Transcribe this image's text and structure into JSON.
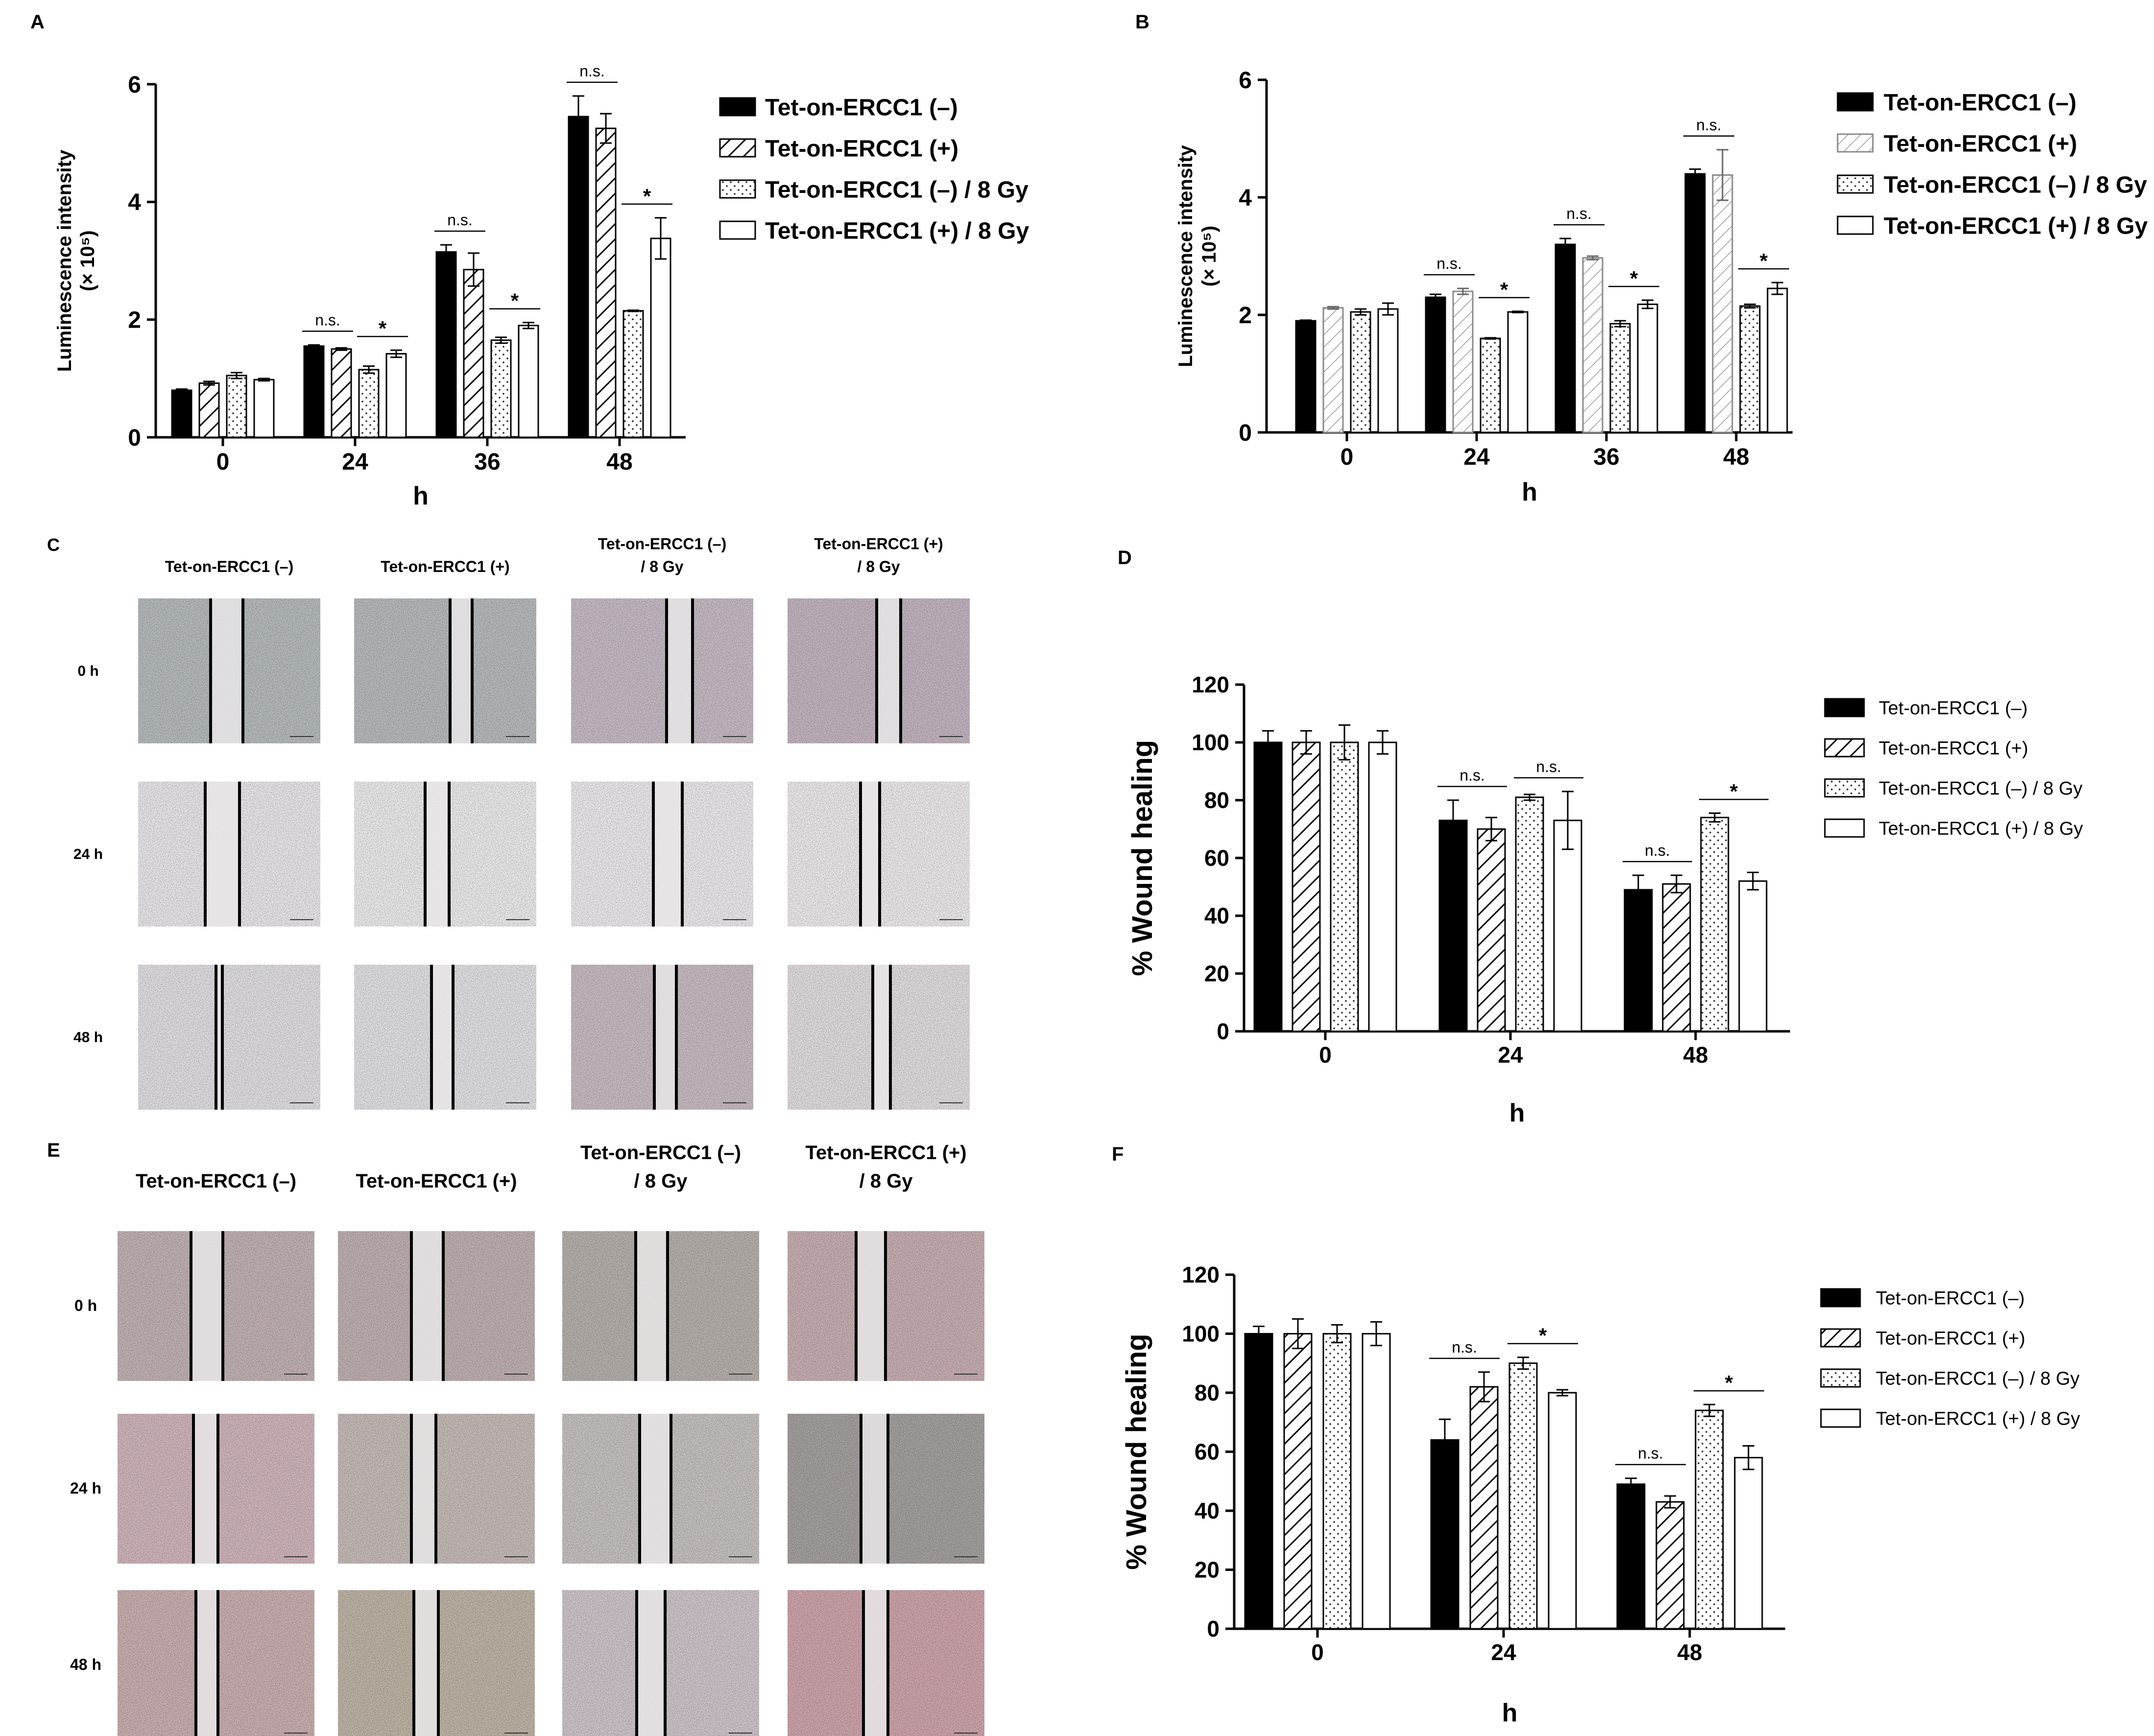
{
  "panels": {
    "A": "A",
    "B": "B",
    "C": "C",
    "D": "D",
    "E": "E",
    "F": "F"
  },
  "colors": {
    "black": "#000000",
    "white": "#ffffff",
    "bgA": "#b9c0c4",
    "bgA2": "#c4b6bf",
    "bgB": "#ece9ec",
    "bgE": "#c4aab0",
    "bgE2": "#b8b0ad",
    "stripe": "#e8e6e8"
  },
  "chart_data": [
    {
      "id": "A",
      "type": "bar",
      "title": "",
      "xlabel": "h",
      "ylabel": "Luminescence intensity",
      "ylabel2": "(× 10⁵)",
      "ylim": [
        0,
        6
      ],
      "yticks": [
        "0",
        "2",
        "4",
        "6"
      ],
      "categories": [
        "0",
        "24",
        "36",
        "48"
      ],
      "series": [
        {
          "name": "Tet-on-ERCC1 (–)",
          "style": "solid",
          "values": [
            0.8,
            1.55,
            3.15,
            5.45
          ],
          "errors": [
            0.02,
            0.02,
            0.12,
            0.35
          ]
        },
        {
          "name": "Tet-on-ERCC1 (+)",
          "style": "hatch",
          "values": [
            0.92,
            1.5,
            2.85,
            5.25
          ],
          "errors": [
            0.03,
            0.02,
            0.28,
            0.25
          ]
        },
        {
          "name": "Tet-on-ERCC1 (–) / 8 Gy",
          "style": "dots",
          "values": [
            1.05,
            1.15,
            1.65,
            2.15
          ],
          "errors": [
            0.05,
            0.06,
            0.05,
            0.01
          ]
        },
        {
          "name": "Tet-on-ERCC1 (+) / 8 Gy",
          "style": "open",
          "values": [
            0.98,
            1.42,
            1.9,
            3.38
          ],
          "errors": [
            0.02,
            0.06,
            0.05,
            0.35
          ]
        }
      ],
      "annotations": [
        {
          "group": 1,
          "pair": [
            0,
            1
          ],
          "text": "n.s."
        },
        {
          "group": 1,
          "pair": [
            2,
            3
          ],
          "text": "*"
        },
        {
          "group": 2,
          "pair": [
            0,
            1
          ],
          "text": "n.s."
        },
        {
          "group": 2,
          "pair": [
            2,
            3
          ],
          "text": "*"
        },
        {
          "group": 3,
          "pair": [
            0,
            1
          ],
          "text": "n.s."
        },
        {
          "group": 3,
          "pair": [
            2,
            3
          ],
          "text": "*"
        }
      ]
    },
    {
      "id": "B",
      "type": "bar",
      "title": "",
      "xlabel": "h",
      "ylabel": "Luminescence intensity",
      "ylabel2": "(× 10⁵)",
      "ylim": [
        0,
        6
      ],
      "yticks": [
        "0",
        "2",
        "4",
        "6"
      ],
      "categories": [
        "0",
        "24",
        "36",
        "48"
      ],
      "series": [
        {
          "name": "Tet-on-ERCC1 (–)",
          "style": "solid",
          "values": [
            1.9,
            2.3,
            3.2,
            4.4
          ],
          "errors": [
            0.01,
            0.05,
            0.1,
            0.08
          ]
        },
        {
          "name": "Tet-on-ERCC1 (+)",
          "style": "hatchlight",
          "values": [
            2.12,
            2.4,
            2.97,
            4.38
          ],
          "errors": [
            0.02,
            0.05,
            0.03,
            0.43
          ]
        },
        {
          "name": "Tet-on-ERCC1 (–) / 8 Gy",
          "style": "dots",
          "values": [
            2.05,
            1.6,
            1.85,
            2.15
          ],
          "errors": [
            0.05,
            0.01,
            0.05,
            0.03
          ]
        },
        {
          "name": "Tet-on-ERCC1 (+) / 8 Gy",
          "style": "open",
          "values": [
            2.1,
            2.05,
            2.18,
            2.45
          ],
          "errors": [
            0.1,
            0.01,
            0.07,
            0.1
          ]
        }
      ],
      "annotations": [
        {
          "group": 1,
          "pair": [
            0,
            1
          ],
          "text": "n.s."
        },
        {
          "group": 1,
          "pair": [
            2,
            3
          ],
          "text": "*"
        },
        {
          "group": 2,
          "pair": [
            0,
            1
          ],
          "text": "n.s."
        },
        {
          "group": 2,
          "pair": [
            2,
            3
          ],
          "text": "*"
        },
        {
          "group": 3,
          "pair": [
            0,
            1
          ],
          "text": "n.s."
        },
        {
          "group": 3,
          "pair": [
            2,
            3
          ],
          "text": "*"
        }
      ]
    },
    {
      "id": "D",
      "type": "bar",
      "title": "",
      "xlabel": "h",
      "ylabel": "% Wound healing",
      "ylim": [
        0,
        120
      ],
      "yticks": [
        "0",
        "20",
        "40",
        "60",
        "80",
        "100",
        "120"
      ],
      "categories": [
        "0",
        "24",
        "48"
      ],
      "series": [
        {
          "name": "Tet-on-ERCC1 (–)",
          "style": "solid",
          "values": [
            100,
            73,
            49
          ],
          "errors": [
            4,
            7,
            5
          ]
        },
        {
          "name": "Tet-on-ERCC1 (+)",
          "style": "hatch",
          "values": [
            100,
            70,
            51
          ],
          "errors": [
            4,
            4,
            3
          ]
        },
        {
          "name": "Tet-on-ERCC1 (–) / 8 Gy",
          "style": "dots",
          "values": [
            100,
            81,
            74
          ],
          "errors": [
            6,
            1,
            1.5
          ]
        },
        {
          "name": "Tet-on-ERCC1 (+) / 8 Gy",
          "style": "open",
          "values": [
            100,
            73,
            52
          ],
          "errors": [
            4,
            10,
            3
          ]
        }
      ],
      "annotations": [
        {
          "group": 1,
          "pair": [
            0,
            1
          ],
          "text": "n.s."
        },
        {
          "group": 1,
          "pair": [
            2,
            3
          ],
          "text": "n.s."
        },
        {
          "group": 2,
          "pair": [
            0,
            1
          ],
          "text": "n.s."
        },
        {
          "group": 2,
          "pair": [
            2,
            3
          ],
          "text": "*"
        }
      ]
    },
    {
      "id": "F",
      "type": "bar",
      "title": "",
      "xlabel": "h",
      "ylabel": "% Wound healing",
      "ylim": [
        0,
        120
      ],
      "yticks": [
        "0",
        "20",
        "40",
        "60",
        "80",
        "100",
        "120"
      ],
      "categories": [
        "0",
        "24",
        "48"
      ],
      "series": [
        {
          "name": "Tet-on-ERCC1 (–)",
          "style": "solid",
          "values": [
            100,
            64,
            49
          ],
          "errors": [
            2.5,
            7,
            2
          ]
        },
        {
          "name": "Tet-on-ERCC1 (+)",
          "style": "hatch",
          "values": [
            100,
            82,
            43
          ],
          "errors": [
            5,
            5,
            2
          ]
        },
        {
          "name": "Tet-on-ERCC1 (–) / 8 Gy",
          "style": "dots",
          "values": [
            100,
            90,
            74
          ],
          "errors": [
            3,
            2,
            2
          ]
        },
        {
          "name": "Tet-on-ERCC1 (+) / 8 Gy",
          "style": "open",
          "values": [
            100,
            80,
            58
          ],
          "errors": [
            4,
            1,
            4
          ]
        }
      ],
      "annotations": [
        {
          "group": 1,
          "pair": [
            0,
            1
          ],
          "text": "n.s."
        },
        {
          "group": 1,
          "pair": [
            2,
            3
          ],
          "text": "*"
        },
        {
          "group": 2,
          "pair": [
            0,
            1
          ],
          "text": "n.s."
        },
        {
          "group": 2,
          "pair": [
            2,
            3
          ],
          "text": "*"
        }
      ]
    }
  ],
  "grids": [
    {
      "id": "C",
      "columns": [
        "Tet-on-ERCC1 (–)",
        "Tet-on-ERCC1 (+)",
        "Tet-on-ERCC1 (–)\n/ 8 Gy",
        "Tet-on-ERCC1 (+)\n/ 8 Gy"
      ],
      "rows": [
        "0 h",
        "24 h",
        "48 h"
      ]
    },
    {
      "id": "E",
      "columns": [
        "Tet-on-ERCC1 (–)",
        "Tet-on-ERCC1 (+)",
        "Tet-on-ERCC1 (–)\n/ 8 Gy",
        "Tet-on-ERCC1 (+)\n/ 8 Gy"
      ],
      "rows": [
        "0 h",
        "24 h",
        "48 h"
      ]
    }
  ]
}
